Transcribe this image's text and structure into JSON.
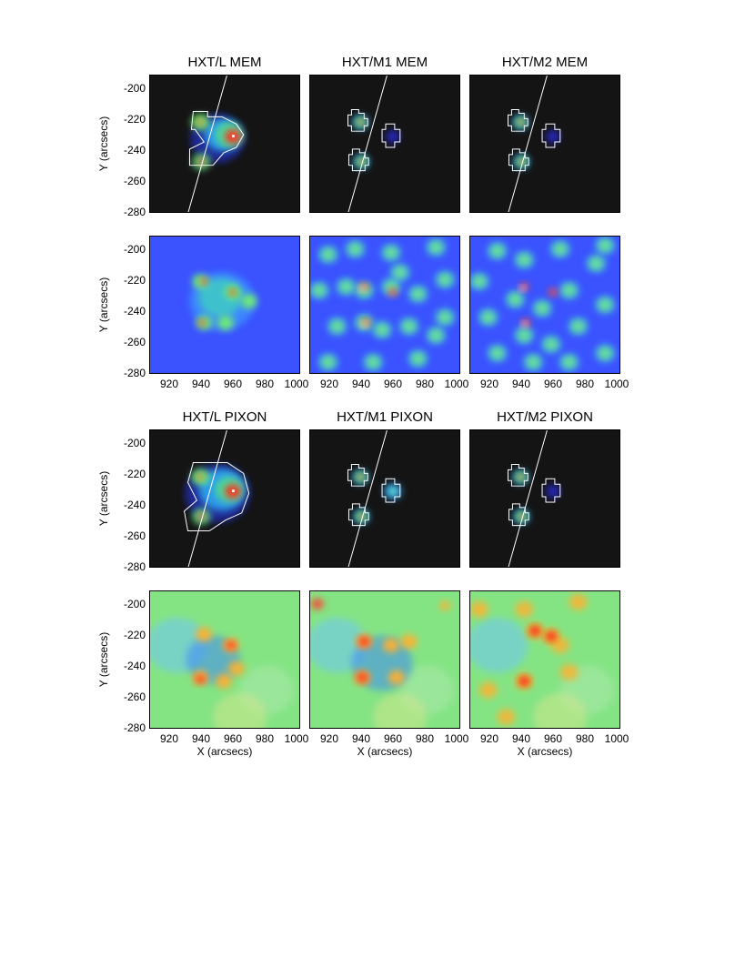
{
  "figure": {
    "panels": [
      {
        "title": "HXT/L MEM",
        "style": "dark"
      },
      {
        "title": "HXT/M1 MEM",
        "style": "dark"
      },
      {
        "title": "HXT/M2 MEM",
        "style": "dark"
      },
      {
        "title": "",
        "style": "blue"
      },
      {
        "title": "",
        "style": "blue"
      },
      {
        "title": "",
        "style": "blue"
      },
      {
        "title": "HXT/L PIXON",
        "style": "dark"
      },
      {
        "title": "HXT/M1 PIXON",
        "style": "dark"
      },
      {
        "title": "HXT/M2 PIXON",
        "style": "dark"
      },
      {
        "title": "",
        "style": "green"
      },
      {
        "title": "",
        "style": "green"
      },
      {
        "title": "",
        "style": "green"
      }
    ],
    "y_axis_label": "Y (arcsecs)",
    "x_axis_label": "X (arcsecs)",
    "y_ticks": [
      "-200",
      "-220",
      "-240",
      "-260",
      "-280"
    ],
    "x_ticks": [
      "920",
      "940",
      "960",
      "980",
      "1000"
    ]
  },
  "colors": {
    "dark_bg": "#141414",
    "blue_bg": "#3a52ff",
    "green_bg": "#84e484",
    "contour": "#ffffff",
    "limb_line": "#ffffff"
  }
}
